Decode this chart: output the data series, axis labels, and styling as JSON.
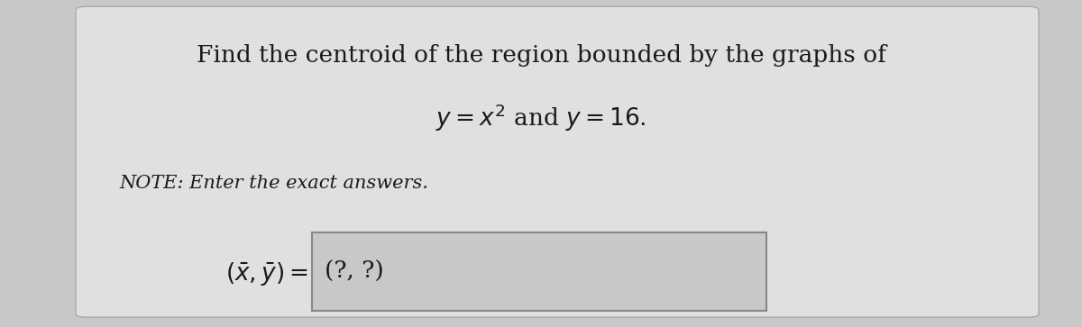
{
  "bg_color": "#c8c8c8",
  "card_color": "#e0e0e0",
  "title_line1": "Find the centroid of the region bounded by the graphs of",
  "title_line2": "$y = x^2$ and $y = 16.$",
  "note_text": "NOTE: Enter the exact answers.",
  "answer_label": "$(\\bar{x}, \\bar{y}) = $",
  "answer_placeholder": "(?, ?)",
  "title_fontsize": 19,
  "note_fontsize": 15,
  "answer_fontsize": 19,
  "text_color": "#1a1a1a",
  "box_facecolor": "#c8c8c8",
  "box_edgecolor": "#888888"
}
